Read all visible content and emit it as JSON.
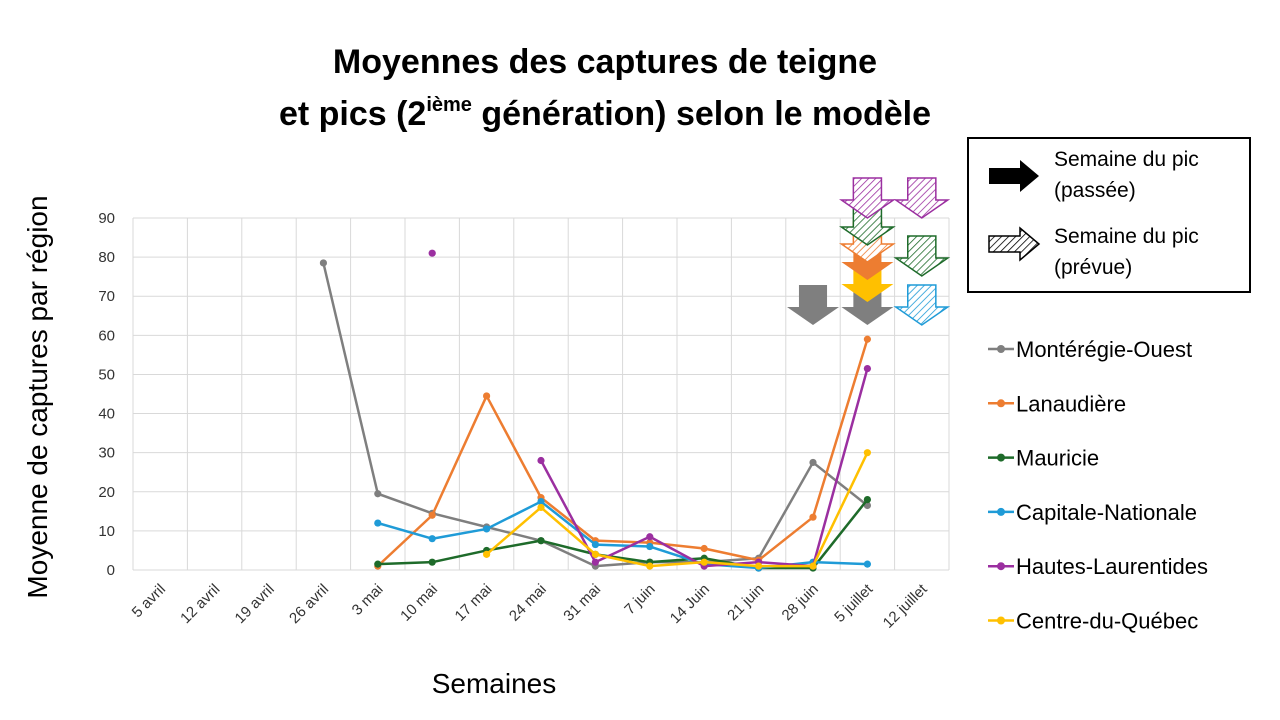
{
  "title": {
    "line1": "Moyennes des captures de teigne",
    "line2_before": "et pics (2",
    "line2_sup": "ième",
    "line2_after": " génération) selon le modèle"
  },
  "peak_legend": {
    "past": {
      "line1": "Semaine du pic",
      "line2": "(passée)"
    },
    "forecast": {
      "line1": "Semaine du pic",
      "line2": "(prévue)"
    }
  },
  "colors": {
    "Montérégie-Ouest": "#7f7f7f",
    "Lanaudière": "#ed7d31",
    "Mauricie": "#1e6b2a",
    "Capitale-Nationale": "#1f9bd7",
    "Hautes-Laurentides": "#9b2fa0",
    "Centre-du-Québec": "#ffc000"
  },
  "chart_data": {
    "type": "line",
    "title": "Moyennes des captures de teigne et pics (2ième génération) selon le modèle",
    "xlabel": "Semaines",
    "ylabel": "Moyenne de captures par région",
    "ylim": [
      0,
      90
    ],
    "yticks": [
      0,
      10,
      20,
      30,
      40,
      50,
      60,
      70,
      80,
      90
    ],
    "grid": true,
    "legend_position": "right",
    "categories": [
      "5 avril",
      "12 avril",
      "19 avril",
      "26 avril",
      "3 mai",
      "10 mai",
      "17 mai",
      "24 mai",
      "31 mai",
      "7 juin",
      "14 Juin",
      "21 juin",
      "28 juin",
      "5 juillet",
      "12 juillet"
    ],
    "series": [
      {
        "name": "Montérégie-Ouest",
        "values": [
          null,
          null,
          null,
          78.5,
          19.5,
          14.5,
          11,
          7.5,
          1,
          2,
          2,
          3,
          27.5,
          16.5,
          null
        ]
      },
      {
        "name": "Lanaudière",
        "values": [
          null,
          null,
          null,
          null,
          1,
          14,
          44.5,
          18.5,
          7.5,
          7,
          5.5,
          2.5,
          13.5,
          59,
          null
        ]
      },
      {
        "name": "Mauricie",
        "values": [
          null,
          null,
          null,
          null,
          1.5,
          2,
          5,
          7.5,
          4,
          2,
          3,
          0.5,
          0.5,
          18,
          null
        ]
      },
      {
        "name": "Capitale-Nationale",
        "values": [
          null,
          null,
          null,
          null,
          12,
          8,
          10.5,
          17.5,
          6.5,
          6,
          1.5,
          0.5,
          2,
          1.5,
          null
        ]
      },
      {
        "name": "Hautes-Laurentides",
        "values": [
          null,
          null,
          null,
          null,
          null,
          81,
          null,
          28,
          2,
          8.5,
          1,
          2,
          1,
          51.5,
          null
        ]
      },
      {
        "name": "Centre-du-Québec",
        "values": [
          null,
          null,
          null,
          null,
          null,
          null,
          4,
          16,
          4,
          1,
          2,
          1,
          1,
          30,
          null
        ]
      }
    ],
    "peak_markers": [
      {
        "week": "28 juin",
        "region": "Montérégie-Ouest",
        "kind": "passée"
      },
      {
        "week": "5 juillet",
        "region": "Montérégie-Ouest",
        "kind": "passée"
      },
      {
        "week": "5 juillet",
        "region": "Centre-du-Québec",
        "kind": "passée"
      },
      {
        "week": "5 juillet",
        "region": "Lanaudière",
        "kind": "passée"
      },
      {
        "week": "5 juillet",
        "region": "Lanaudière",
        "kind": "prévue"
      },
      {
        "week": "5 juillet",
        "region": "Mauricie",
        "kind": "prévue"
      },
      {
        "week": "5 juillet",
        "region": "Hautes-Laurentides",
        "kind": "prévue"
      },
      {
        "week": "12 juillet",
        "region": "Capitale-Nationale",
        "kind": "prévue"
      },
      {
        "week": "12 juillet",
        "region": "Mauricie",
        "kind": "prévue"
      },
      {
        "week": "12 juillet",
        "region": "Hautes-Laurentides",
        "kind": "prévue"
      }
    ]
  }
}
